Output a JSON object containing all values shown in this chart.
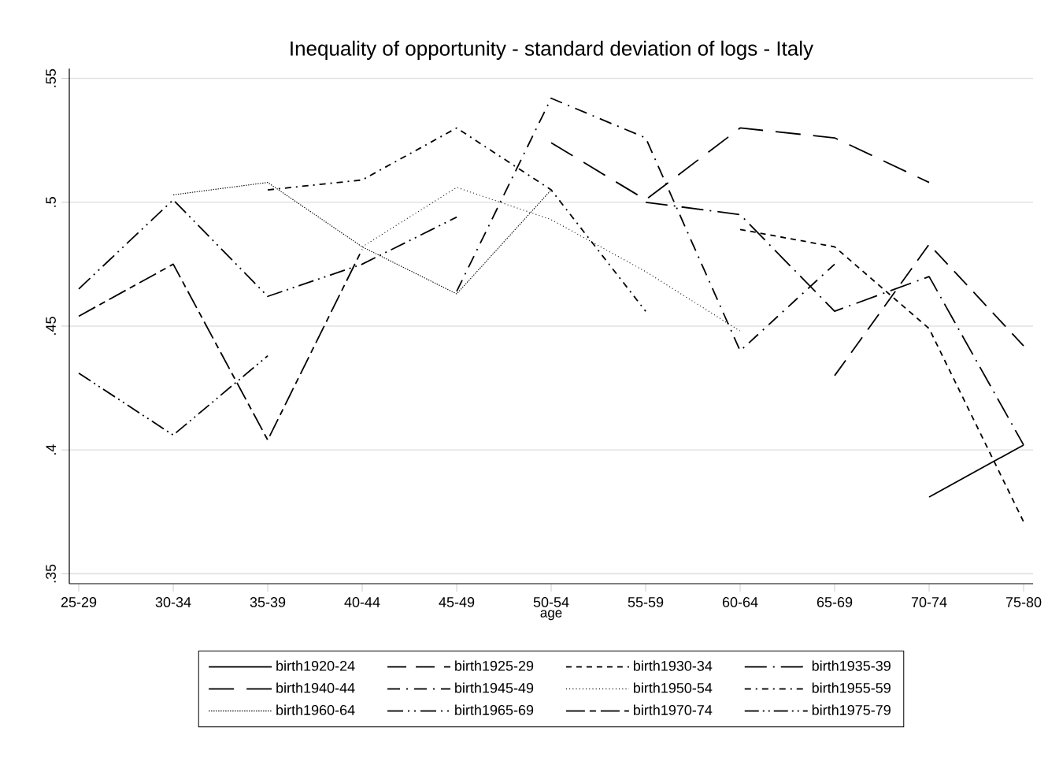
{
  "chart_data": {
    "type": "line",
    "title": "Inequality of opportunity - standard deviation of logs - Italy",
    "xlabel": "age",
    "categories": [
      "25-29",
      "30-34",
      "35-39",
      "40-44",
      "45-49",
      "50-54",
      "55-59",
      "60-64",
      "65-69",
      "70-74",
      "75-80"
    ],
    "ylim": [
      0.346,
      0.554
    ],
    "yticks": [
      {
        "value": 0.35,
        "label": ".35"
      },
      {
        "value": 0.4,
        "label": ".4"
      },
      {
        "value": 0.45,
        "label": ".45"
      },
      {
        "value": 0.5,
        "label": ".5"
      },
      {
        "value": 0.55,
        "label": ".55"
      }
    ],
    "grid": "y",
    "legend": "bottom",
    "series": [
      {
        "name": "birth1920-24",
        "color": "#000000",
        "line_style": "solid",
        "values": [
          null,
          null,
          null,
          null,
          null,
          null,
          null,
          null,
          null,
          0.381,
          0.402
        ]
      },
      {
        "name": "birth1925-29",
        "color": "#000000",
        "line_style": "dashed",
        "values": [
          null,
          null,
          null,
          null,
          null,
          null,
          null,
          null,
          0.43,
          0.483,
          0.442
        ]
      },
      {
        "name": "birth1930-34",
        "color": "#000000",
        "line_style": "shortdash",
        "values": [
          null,
          null,
          null,
          null,
          null,
          null,
          null,
          0.489,
          0.482,
          0.449,
          0.371
        ]
      },
      {
        "name": "birth1935-39",
        "color": "#000000",
        "line_style": "longdashdot",
        "values": [
          null,
          null,
          null,
          null,
          null,
          null,
          0.5,
          0.495,
          0.456,
          0.47,
          0.402
        ]
      },
      {
        "name": "birth1940-44",
        "color": "#000000",
        "line_style": "longdash",
        "values": [
          null,
          null,
          null,
          null,
          null,
          0.524,
          0.501,
          0.53,
          0.526,
          0.508,
          null
        ]
      },
      {
        "name": "birth1945-49",
        "color": "#000000",
        "line_style": "dashdot",
        "values": [
          null,
          null,
          null,
          null,
          0.464,
          0.542,
          0.526,
          0.44,
          0.475,
          null,
          null
        ]
      },
      {
        "name": "birth1950-54",
        "color": "#000000",
        "line_style": "dotted",
        "values": [
          null,
          null,
          null,
          0.482,
          0.506,
          0.493,
          0.472,
          0.448,
          null,
          null,
          null
        ]
      },
      {
        "name": "birth1955-59",
        "color": "#000000",
        "line_style": "shortdashdot",
        "values": [
          null,
          null,
          0.505,
          0.509,
          0.53,
          0.505,
          0.456,
          null,
          null,
          null,
          null
        ]
      },
      {
        "name": "birth1960-64",
        "color": "#000000",
        "line_style": "densedotted",
        "values": [
          null,
          0.503,
          0.508,
          0.482,
          0.463,
          0.505,
          null,
          null,
          null,
          null,
          null
        ]
      },
      {
        "name": "birth1965-69",
        "color": "#000000",
        "line_style": "dashdotdot",
        "values": [
          0.465,
          0.501,
          0.462,
          0.475,
          0.494,
          null,
          null,
          null,
          null,
          null,
          null
        ]
      },
      {
        "name": "birth1970-74",
        "color": "#000000",
        "line_style": "longshortdash",
        "values": [
          0.454,
          0.475,
          0.404,
          0.481,
          null,
          null,
          null,
          null,
          null,
          null,
          null
        ]
      },
      {
        "name": "birth1975-79",
        "color": "#000000",
        "line_style": "longdashdotdot",
        "values": [
          0.431,
          0.406,
          0.438,
          null,
          null,
          null,
          null,
          null,
          null,
          null,
          null
        ]
      }
    ]
  }
}
